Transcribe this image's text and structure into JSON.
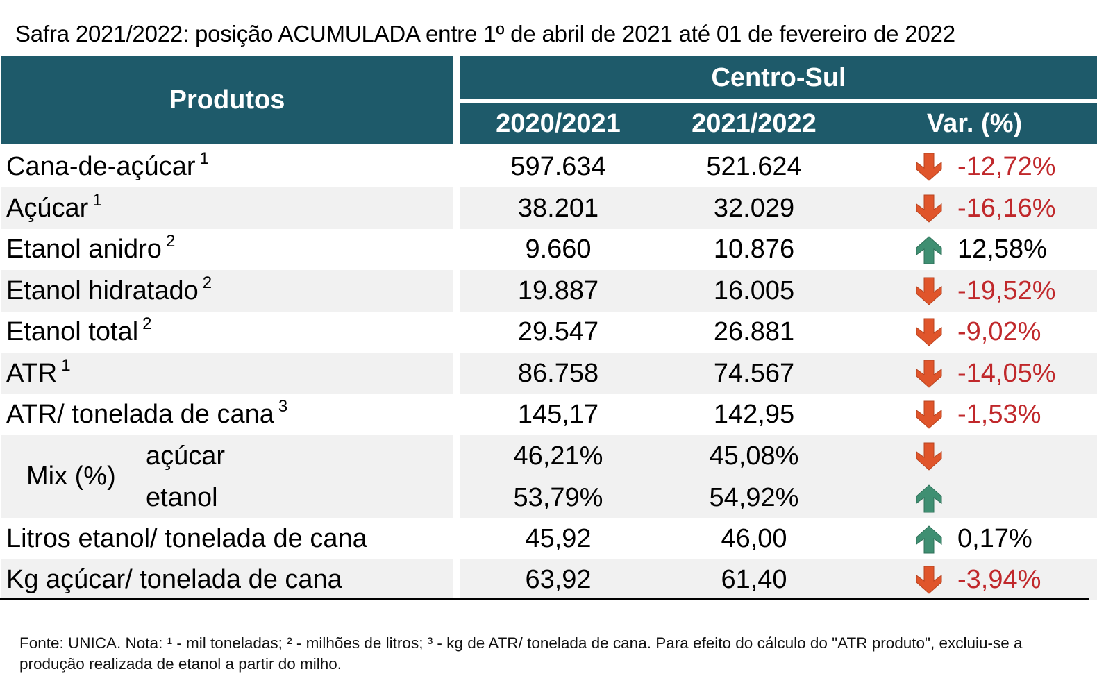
{
  "title": "Safra 2021/2022: posição ACUMULADA entre 1º de abril de 2021 até 01 de fevereiro de 2022",
  "header": {
    "produtos": "Produtos",
    "region": "Centro-Sul",
    "col_2020": "2020/2021",
    "col_2021": "2021/2022",
    "col_var": "Var. (%)"
  },
  "rows": [
    {
      "label": "Cana-de-açúcar",
      "sup": "1",
      "v2020": "597.634",
      "v2021": "521.624",
      "trend": "down",
      "var": "-12,72%"
    },
    {
      "label": "Açúcar",
      "sup": "1",
      "v2020": "38.201",
      "v2021": "32.029",
      "trend": "down",
      "var": "-16,16%"
    },
    {
      "label": "Etanol anidro",
      "sup": "2",
      "v2020": "9.660",
      "v2021": "10.876",
      "trend": "up",
      "var": "12,58%"
    },
    {
      "label": "Etanol hidratado",
      "sup": "2",
      "v2020": "19.887",
      "v2021": "16.005",
      "trend": "down",
      "var": "-19,52%"
    },
    {
      "label": "Etanol total",
      "sup": "2",
      "v2020": "29.547",
      "v2021": "26.881",
      "trend": "down",
      "var": "-9,02%"
    },
    {
      "label": "ATR",
      "sup": "1",
      "v2020": "86.758",
      "v2021": "74.567",
      "trend": "down",
      "var": "-14,05%"
    },
    {
      "label": "ATR/ tonelada de cana",
      "sup": "3",
      "v2020": "145,17",
      "v2021": "142,95",
      "trend": "down",
      "var": "-1,53%"
    }
  ],
  "mix": {
    "label": "Mix (%)",
    "acucar": {
      "label": "açúcar",
      "v2020": "46,21%",
      "v2021": "45,08%",
      "trend": "down"
    },
    "etanol": {
      "label": "etanol",
      "v2020": "53,79%",
      "v2021": "54,92%",
      "trend": "up"
    }
  },
  "rows_after": [
    {
      "label": "Litros etanol/ tonelada de cana",
      "v2020": "45,92",
      "v2021": "46,00",
      "trend": "up",
      "var": "0,17%"
    },
    {
      "label": "Kg açúcar/ tonelada de cana",
      "v2020": "63,92",
      "v2021": "61,40",
      "trend": "down",
      "var": "-3,94%"
    }
  ],
  "note": "Fonte: UNICA. Nota: ¹ - mil toneladas; ² - milhões de litros; ³ - kg de ATR/ tonelada de cana. Para efeito do cálculo do \"ATR produto\", excluiu-se a produção realizada de etanol a partir do milho.",
  "colors": {
    "header_bg": "#1e5a6a",
    "negative": "#c0282b",
    "arrow_down": "#e0552b",
    "arrow_up": "#3f8f72",
    "row_shade": "#f1f1f1"
  },
  "chart_data": {
    "type": "table",
    "title": "Safra 2021/2022: posição ACUMULADA entre 1º de abril de 2021 até 01 de fevereiro de 2022",
    "columns": [
      "Produtos",
      "2020/2021",
      "2021/2022",
      "Var. (%)"
    ],
    "rows": [
      [
        "Cana-de-açúcar",
        597634,
        521624,
        -12.72
      ],
      [
        "Açúcar",
        38201,
        32029,
        -16.16
      ],
      [
        "Etanol anidro",
        9660,
        10876,
        12.58
      ],
      [
        "Etanol hidratado",
        19887,
        16005,
        -19.52
      ],
      [
        "Etanol total",
        29547,
        26881,
        -9.02
      ],
      [
        "ATR",
        86758,
        74567,
        -14.05
      ],
      [
        "ATR/ tonelada de cana",
        145.17,
        142.95,
        -1.53
      ],
      [
        "Mix (%) açúcar",
        46.21,
        45.08,
        null
      ],
      [
        "Mix (%) etanol",
        53.79,
        54.92,
        null
      ],
      [
        "Litros etanol/ tonelada de cana",
        45.92,
        46.0,
        0.17
      ],
      [
        "Kg açúcar/ tonelada de cana",
        63.92,
        61.4,
        -3.94
      ]
    ]
  }
}
